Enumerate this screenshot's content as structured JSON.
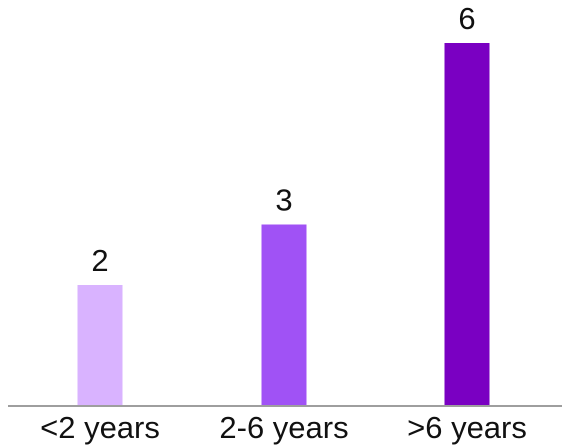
{
  "chart_data": {
    "type": "bar",
    "categories": [
      "<2 years",
      "2-6 years",
      ">6 years"
    ],
    "values": [
      2,
      3,
      6
    ],
    "value_labels": [
      "2",
      "3",
      "6"
    ],
    "colors": [
      "#d9b3ff",
      "#a052f5",
      "#7a00c2"
    ],
    "title": "",
    "xlabel": "",
    "ylabel": "",
    "ylim": [
      0,
      6
    ],
    "grid": false,
    "legend": "none"
  }
}
